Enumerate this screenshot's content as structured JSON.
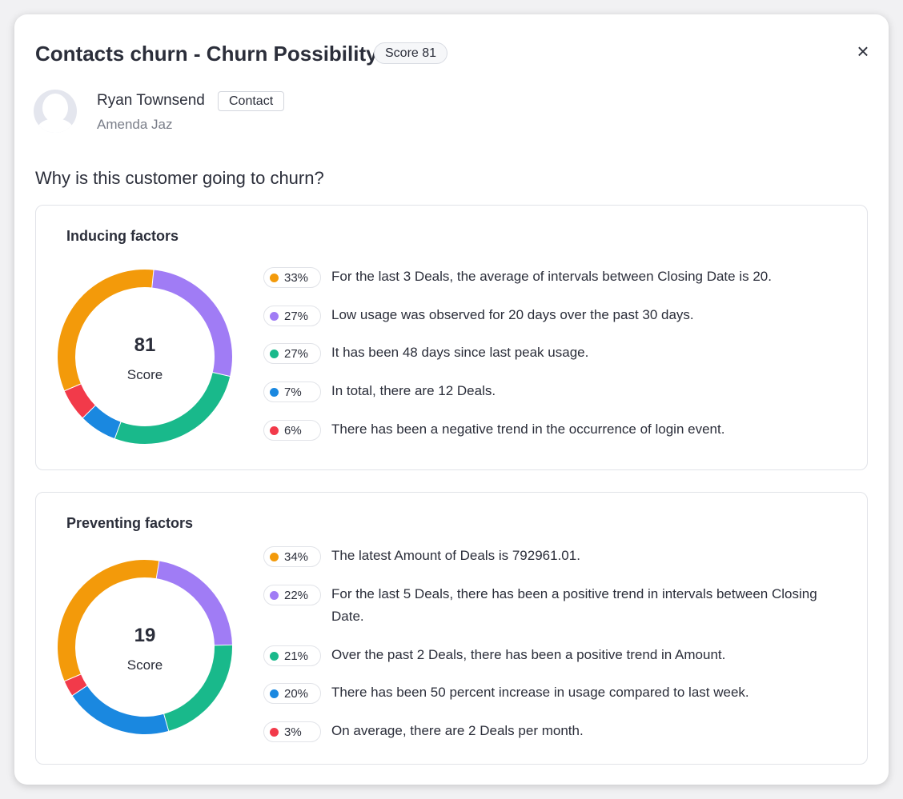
{
  "header": {
    "title": "Contacts churn - Churn Possibility",
    "score_badge": "Score 81",
    "close_icon": "×"
  },
  "contact": {
    "name": "Ryan Townsend",
    "type_tag": "Contact",
    "account": "Amenda Jaz"
  },
  "question": "Why is this customer going to churn?",
  "colors": {
    "orange": "#f39a0a",
    "purple": "#a07cf5",
    "green": "#19b98b",
    "blue": "#1a88e0",
    "red": "#f23a4a"
  },
  "inducing": {
    "title": "Inducing factors",
    "score": "81",
    "score_label": "Score",
    "chart_data": {
      "type": "pie",
      "values": [
        33,
        27,
        27,
        7,
        6
      ],
      "colors": [
        "#f39a0a",
        "#a07cf5",
        "#19b98b",
        "#1a88e0",
        "#f23a4a"
      ]
    },
    "factors": [
      {
        "percent": "33%",
        "color": "#f39a0a",
        "text": "For the last 3 Deals, the average of intervals between Closing Date is 20."
      },
      {
        "percent": "27%",
        "color": "#a07cf5",
        "text": "Low usage was observed for 20 days over the past 30 days."
      },
      {
        "percent": "27%",
        "color": "#19b98b",
        "text": "It has been 48 days since last peak usage."
      },
      {
        "percent": "7%",
        "color": "#1a88e0",
        "text": "In total, there are 12 Deals."
      },
      {
        "percent": "6%",
        "color": "#f23a4a",
        "text": "There has been a negative trend in the occurrence of login event."
      }
    ]
  },
  "preventing": {
    "title": "Preventing factors",
    "score": "19",
    "score_label": "Score",
    "chart_data": {
      "type": "pie",
      "values": [
        34,
        22,
        21,
        20,
        3
      ],
      "colors": [
        "#f39a0a",
        "#a07cf5",
        "#19b98b",
        "#1a88e0",
        "#f23a4a"
      ]
    },
    "factors": [
      {
        "percent": "34%",
        "color": "#f39a0a",
        "text": "The latest Amount of Deals is 792961.01."
      },
      {
        "percent": "22%",
        "color": "#a07cf5",
        "text": "For the last 5 Deals, there has been a positive trend in intervals between Closing Date."
      },
      {
        "percent": "21%",
        "color": "#19b98b",
        "text": "Over the past 2 Deals, there has been a positive trend in Amount."
      },
      {
        "percent": "20%",
        "color": "#1a88e0",
        "text": "There has been 50 percent increase in usage compared to last week."
      },
      {
        "percent": "3%",
        "color": "#f23a4a",
        "text": "On average, there are 2 Deals per month."
      }
    ]
  }
}
